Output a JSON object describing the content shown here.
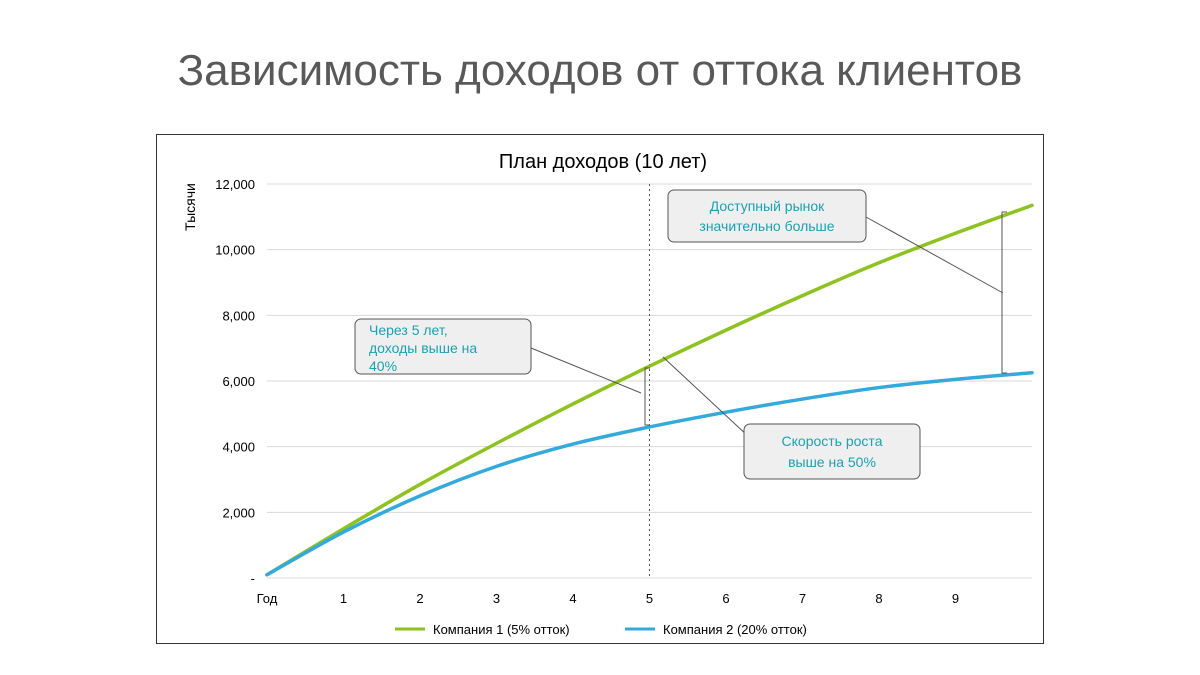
{
  "slide": {
    "title": "Зависимость доходов от оттока клиентов"
  },
  "chart_data": {
    "type": "line",
    "title": "План доходов (10 лет)",
    "ylabel": "Тысячи",
    "xlabel": "",
    "x_first_label": "Год",
    "categories": [
      "Год",
      "1",
      "2",
      "3",
      "4",
      "5",
      "6",
      "7",
      "8",
      "9"
    ],
    "xlim": [
      0,
      10
    ],
    "ylim": [
      0,
      12000
    ],
    "y_ticks": [
      0,
      2000,
      4000,
      6000,
      8000,
      10000,
      12000
    ],
    "y_tick_labels": [
      "-",
      "2,000",
      "4,000",
      "6,000",
      "8,000",
      "10,000",
      "12,000"
    ],
    "grid": true,
    "legend_position": "bottom",
    "series": [
      {
        "name": "Компания 1 (5% отток)",
        "color": "#8dc21f",
        "x": [
          0,
          1,
          2,
          3,
          4,
          5,
          6,
          7,
          8,
          9,
          10
        ],
        "values": [
          100,
          1500,
          2850,
          4100,
          5300,
          6450,
          7550,
          8600,
          9600,
          10500,
          11350
        ]
      },
      {
        "name": "Компания 2 (20% отток)",
        "color": "#33a9dc",
        "x": [
          0,
          1,
          2,
          3,
          4,
          5,
          6,
          7,
          8,
          9,
          10
        ],
        "values": [
          100,
          1400,
          2500,
          3400,
          4080,
          4600,
          5050,
          5450,
          5800,
          6050,
          6250
        ]
      }
    ],
    "reference_line": {
      "x": 5,
      "style": "dotted"
    },
    "annotations": [
      {
        "id": "note1",
        "lines": [
          "Через 5 лет,",
          "доходы выше на",
          "40%"
        ]
      },
      {
        "id": "note2",
        "lines": [
          "Скорость роста",
          "выше на 50%"
        ]
      },
      {
        "id": "note3",
        "lines": [
          "Доступный рынок",
          "значительно больше"
        ]
      }
    ],
    "colors": {
      "annotation_text": "#1aa1b4",
      "annotation_fill": "#efefef",
      "grid": "#d9d9d9"
    }
  }
}
